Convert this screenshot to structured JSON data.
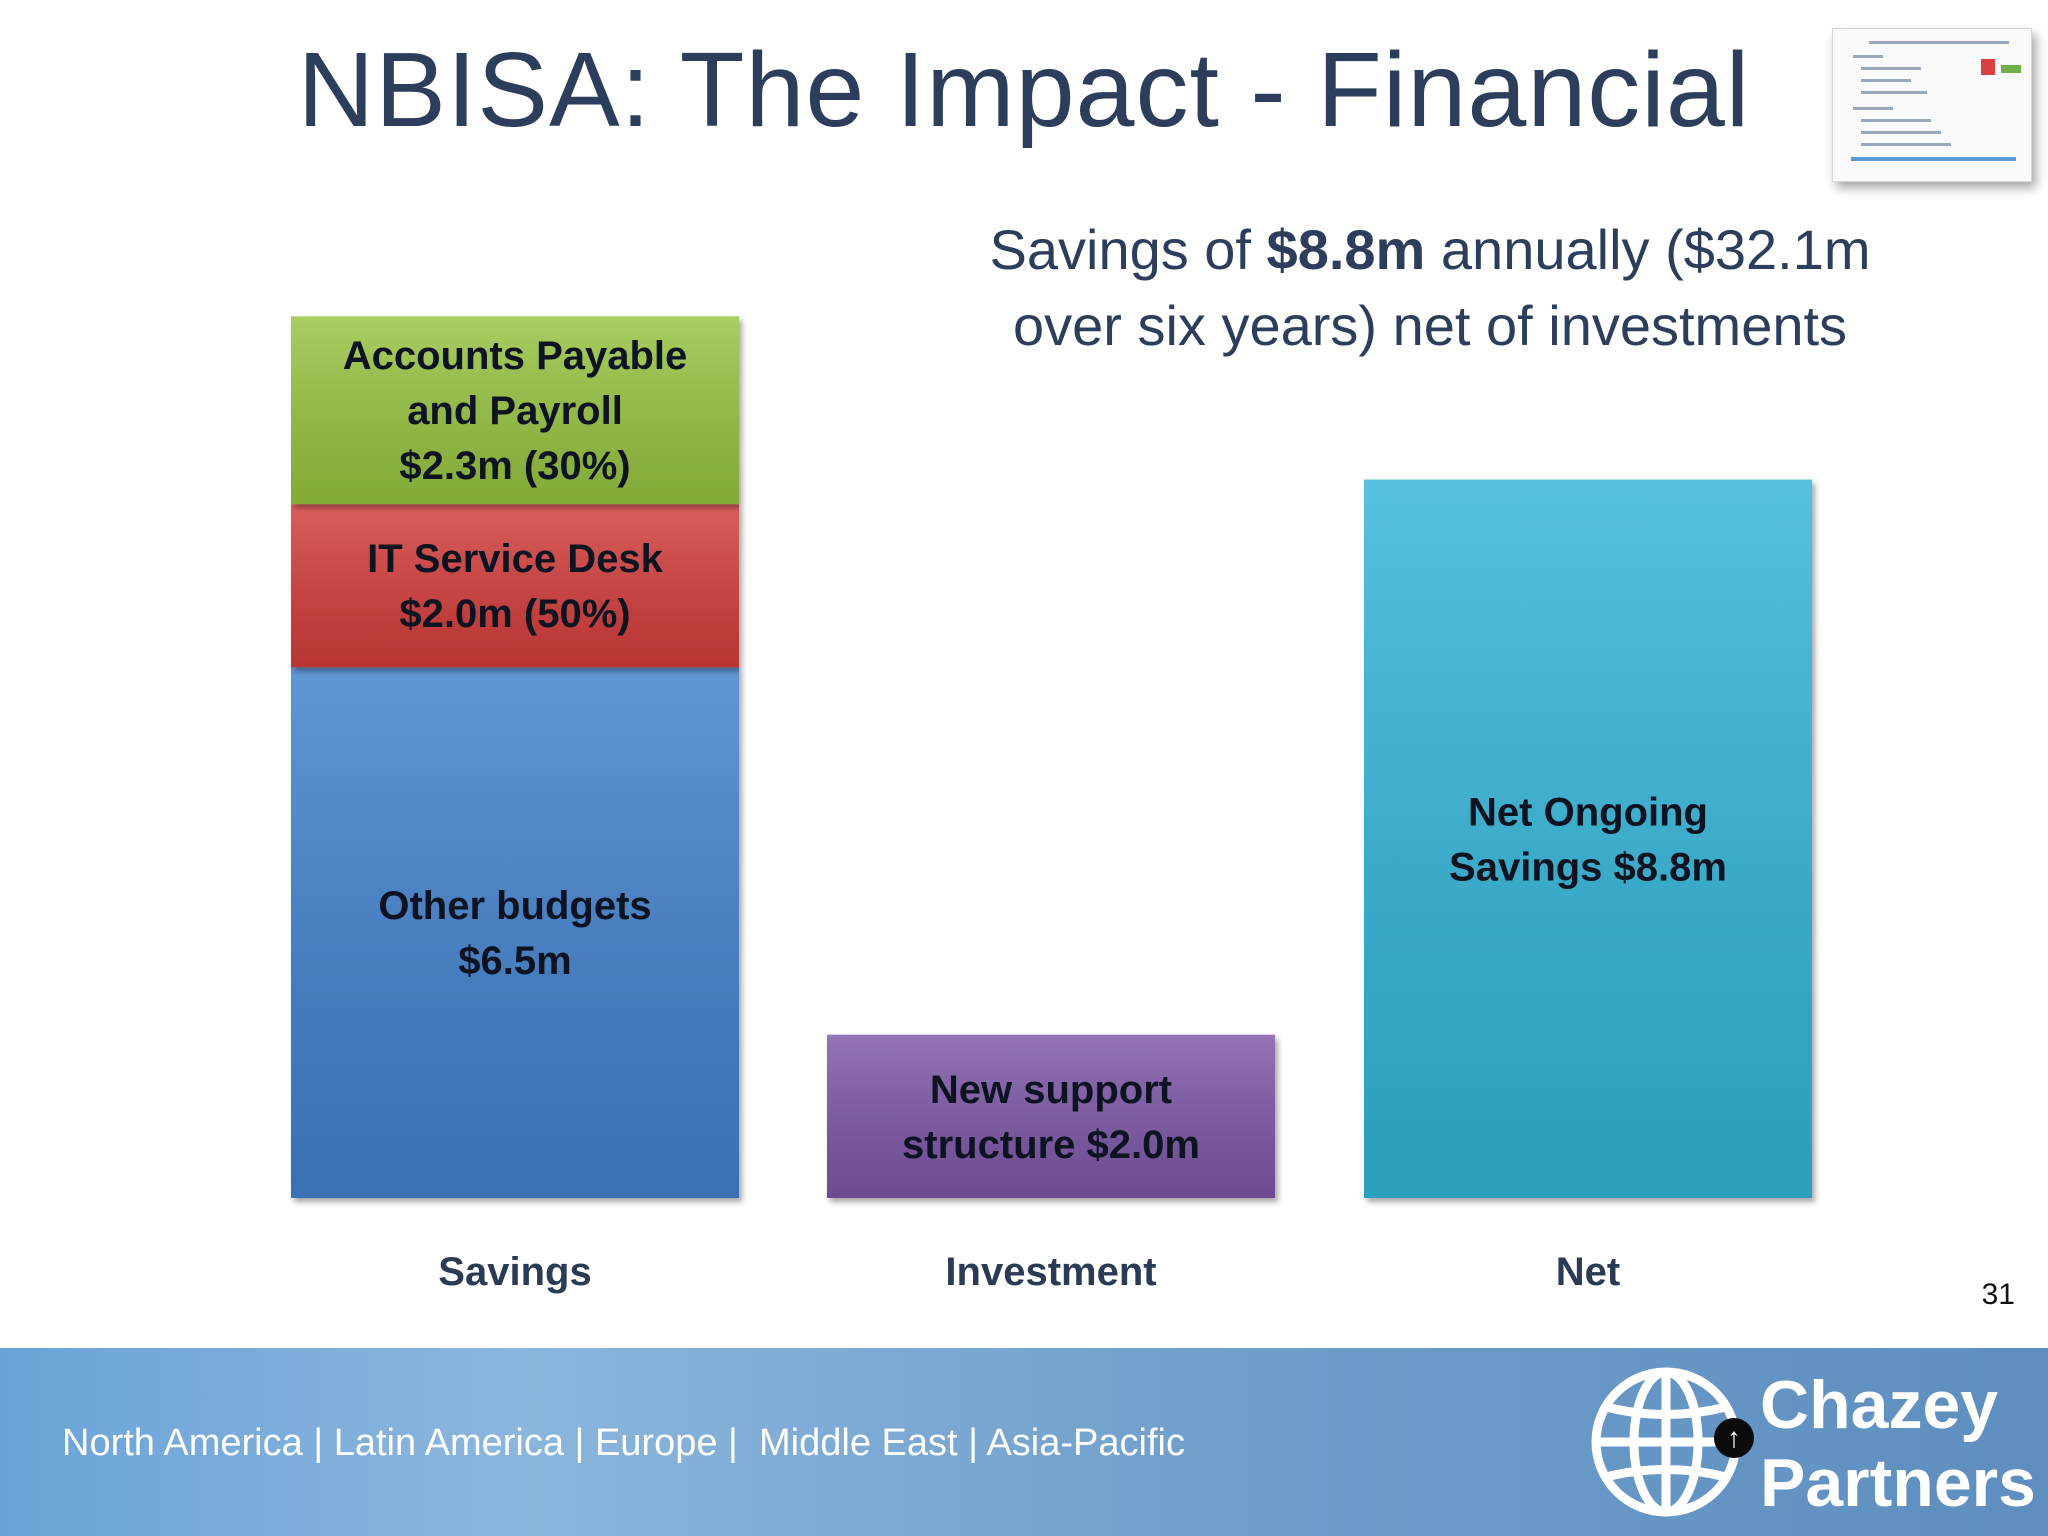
{
  "title": "NBISA: The Impact - Financial",
  "subtitle": {
    "prefix": "Savings of ",
    "highlight": "$8.8m",
    "suffix": " annually ($32.1m over six years) net of investments"
  },
  "page_number": "31",
  "footer": {
    "regions": "North America | Latin America | Europe |  Middle East | Asia-Pacific",
    "logo_line1": "Chazey",
    "logo_line2": "Partners",
    "badge_symbol": "↑"
  },
  "colors": {
    "other_budgets": "#3f80cc",
    "it_service_desk": "#d23d3a",
    "accounts_payable": "#96c341",
    "investment": "#7b57a6",
    "net": "#33b4d8"
  },
  "chart_data": {
    "type": "bar",
    "stacked": true,
    "categories": [
      "Savings",
      "Investment",
      "Net"
    ],
    "ylim": [
      0,
      11.0
    ],
    "grid": false,
    "legend": "none",
    "bars": [
      {
        "category": "Savings",
        "segments": [
          {
            "key": "other_budgets",
            "value": 6.5,
            "label_lines": [
              "Other budgets",
              "$6.5m"
            ]
          },
          {
            "key": "it_service_desk",
            "value": 2.0,
            "label_lines": [
              "IT Service Desk",
              "$2.0m (50%)"
            ]
          },
          {
            "key": "accounts_payable",
            "value": 2.3,
            "label_lines": [
              "Accounts Payable",
              "and Payroll",
              "$2.3m (30%)"
            ]
          }
        ]
      },
      {
        "category": "Investment",
        "segments": [
          {
            "key": "investment",
            "value": 2.0,
            "label_lines": [
              "New support",
              "structure $2.0m"
            ]
          }
        ]
      },
      {
        "category": "Net",
        "segments": [
          {
            "key": "net",
            "value": 8.8,
            "label_lines": [
              "Net Ongoing",
              "Savings $8.8m"
            ]
          }
        ]
      }
    ]
  }
}
